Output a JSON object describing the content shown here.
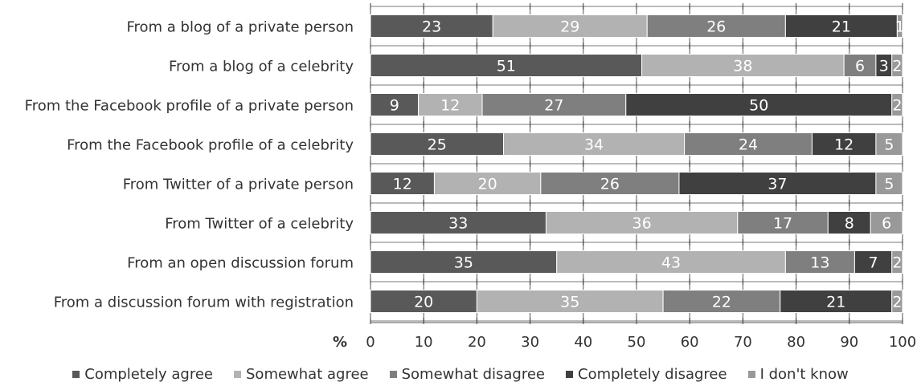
{
  "chart_data": {
    "type": "bar",
    "orientation": "horizontal",
    "stacked": true,
    "categories": [
      "From a blog of a private person",
      "From a blog of a celebrity",
      "From the Facebook profile of a private person",
      "From the Facebook profile of a celebrity",
      "From Twitter of a private person",
      "From Twitter of a celebrity",
      "From an open discussion forum",
      "From a discussion forum with registration"
    ],
    "series": [
      {
        "name": "Completely agree",
        "color": "#595959",
        "values": [
          23,
          51,
          9,
          25,
          12,
          33,
          35,
          20
        ]
      },
      {
        "name": "Somewhat agree",
        "color": "#b2b2b2",
        "values": [
          29,
          38,
          12,
          34,
          20,
          36,
          43,
          35
        ]
      },
      {
        "name": "Somewhat disagree",
        "color": "#7f7f7f",
        "values": [
          26,
          6,
          27,
          24,
          26,
          17,
          13,
          22
        ]
      },
      {
        "name": "Completely disagree",
        "color": "#404040",
        "values": [
          21,
          3,
          50,
          12,
          37,
          8,
          7,
          21
        ]
      },
      {
        "name": "I don't know",
        "color": "#999999",
        "values": [
          1,
          2,
          2,
          5,
          5,
          6,
          2,
          2
        ]
      }
    ],
    "xlabel": "%",
    "xlim": [
      0,
      100
    ],
    "xticks": [
      0,
      10,
      20,
      30,
      40,
      50,
      60,
      70,
      80,
      90,
      100
    ],
    "grid": true,
    "legend_position": "bottom"
  }
}
